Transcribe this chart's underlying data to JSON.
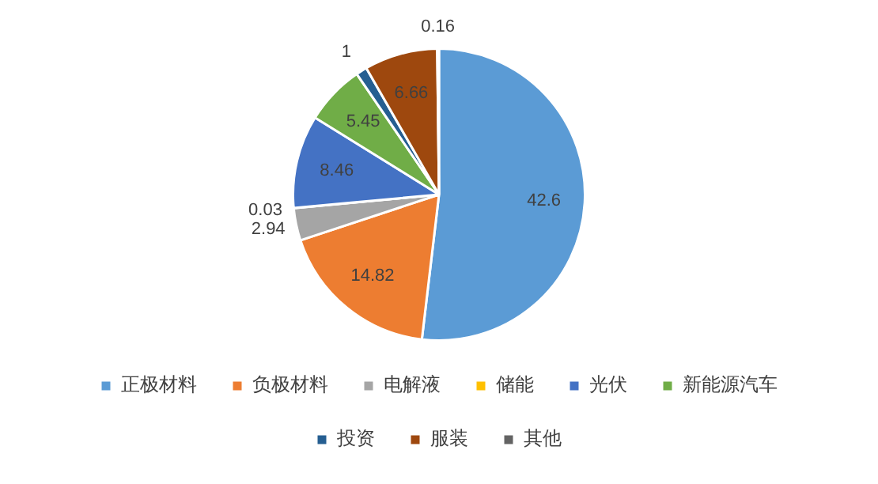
{
  "chart_data": {
    "type": "pie",
    "categories": [
      "正极材料",
      "负极材料",
      "电解液",
      "储能",
      "光伏",
      "新能源汽车",
      "投资",
      "服装",
      "其他"
    ],
    "values": [
      42.6,
      14.82,
      2.94,
      0.03,
      8.46,
      5.45,
      1,
      6.66,
      0.16
    ],
    "colors": [
      "#5b9bd5",
      "#ed7d31",
      "#a5a5a5",
      "#ffc000",
      "#4472c4",
      "#70ad47",
      "#255e91",
      "#9e480e",
      "#636363"
    ],
    "data_labels": true,
    "legend": "bottom"
  }
}
